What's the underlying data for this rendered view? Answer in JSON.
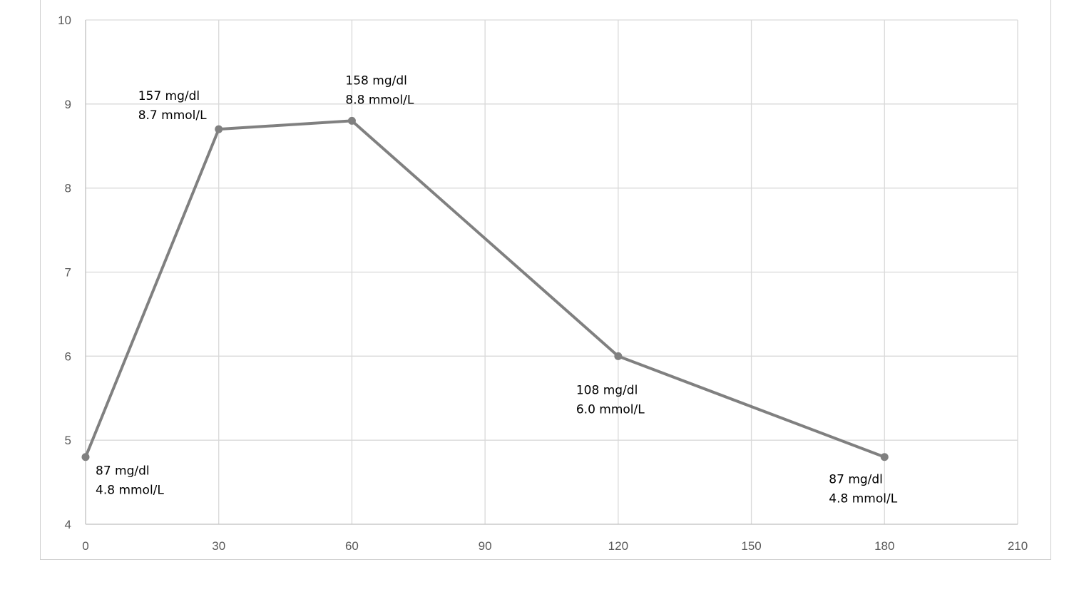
{
  "chart_data": {
    "type": "line",
    "title": "",
    "xlabel": "",
    "ylabel": "",
    "xlim": [
      0,
      210
    ],
    "ylim": [
      4,
      10
    ],
    "x_ticks": [
      0,
      30,
      60,
      90,
      120,
      150,
      180,
      210
    ],
    "y_ticks": [
      4,
      5,
      6,
      7,
      8,
      9,
      10
    ],
    "grid": true,
    "legend": "none",
    "series": [
      {
        "color": "#808080",
        "points": [
          {
            "x": 0,
            "y": 4.8,
            "label_lines": [
              "87 mg/dl",
              "4.8 mmol/L"
            ],
            "label_side": "below-right"
          },
          {
            "x": 30,
            "y": 8.7,
            "label_lines": [
              "157 mg/dl",
              "8.7 mmol/L"
            ],
            "label_side": "above-left"
          },
          {
            "x": 60,
            "y": 8.8,
            "label_lines": [
              "158 mg/dl",
              "8.8 mmol/L"
            ],
            "label_side": "above"
          },
          {
            "x": 120,
            "y": 6.0,
            "label_lines": [
              "108 mg/dl",
              "6.0 mmol/L"
            ],
            "label_side": "below"
          },
          {
            "x": 180,
            "y": 4.8,
            "label_lines": [
              "87 mg/dl",
              "4.8 mmol/L"
            ],
            "label_side": "below-left"
          }
        ]
      }
    ]
  }
}
